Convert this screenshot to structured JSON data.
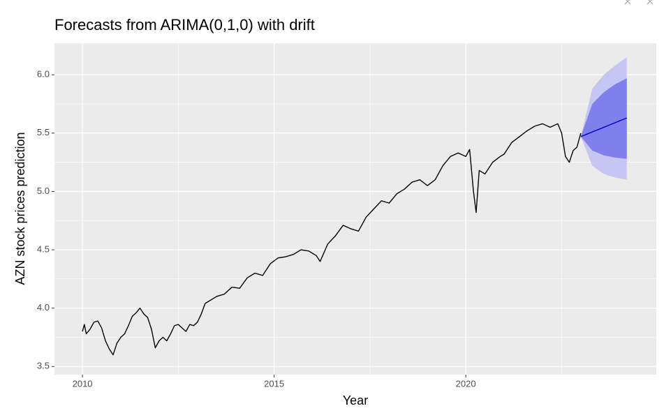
{
  "chart_data": {
    "type": "line",
    "title": "Forecasts from ARIMA(0,1,0) with drift",
    "x_label": "Year",
    "y_label": "AZN stock prices prediction",
    "xlim": [
      2009.27,
      2024.97
    ],
    "ylim": [
      3.43,
      6.27
    ],
    "xticks": [
      2010,
      2015,
      2020
    ],
    "yticks": [
      {
        "value": 3.5,
        "label": "3.5"
      },
      {
        "value": 4,
        "label": "4.0"
      },
      {
        "value": 4.5,
        "label": "4.5"
      },
      {
        "value": 5,
        "label": "5.0"
      },
      {
        "value": 5.5,
        "label": "5.5"
      },
      {
        "value": 6,
        "label": "6.0"
      }
    ],
    "x_minor_ticks": [
      2012.5,
      2017.5,
      2022.5
    ],
    "y_minor_ticks": [
      3.75,
      4.25,
      4.75,
      5.25,
      5.75
    ],
    "grid": true,
    "series": [
      {
        "color": "#000000",
        "x": [
          2010.0,
          2010.05,
          2010.1,
          2010.2,
          2010.3,
          2010.4,
          2010.5,
          2010.6,
          2010.7,
          2010.8,
          2010.9,
          2011.0,
          2011.1,
          2011.2,
          2011.3,
          2011.4,
          2011.5,
          2011.6,
          2011.7,
          2011.8,
          2011.9,
          2012.0,
          2012.1,
          2012.2,
          2012.3,
          2012.4,
          2012.5,
          2012.6,
          2012.7,
          2012.8,
          2012.9,
          2013.0,
          2013.1,
          2013.2,
          2013.3,
          2013.5,
          2013.7,
          2013.9,
          2014.1,
          2014.3,
          2014.5,
          2014.7,
          2014.9,
          2015.1,
          2015.3,
          2015.5,
          2015.7,
          2015.9,
          2016.1,
          2016.2,
          2016.4,
          2016.6,
          2016.8,
          2017.0,
          2017.2,
          2017.4,
          2017.6,
          2017.8,
          2018.0,
          2018.2,
          2018.4,
          2018.6,
          2018.8,
          2019.0,
          2019.2,
          2019.4,
          2019.6,
          2019.8,
          2020.0,
          2020.1,
          2020.2,
          2020.27,
          2020.35,
          2020.5,
          2020.7,
          2020.9,
          2021.0,
          2021.2,
          2021.4,
          2021.6,
          2021.8,
          2022.0,
          2022.2,
          2022.4,
          2022.5,
          2022.6,
          2022.7,
          2022.8,
          2022.9,
          2023.0
        ],
        "values": [
          3.8,
          3.86,
          3.78,
          3.82,
          3.88,
          3.89,
          3.83,
          3.72,
          3.65,
          3.6,
          3.7,
          3.75,
          3.78,
          3.85,
          3.93,
          3.96,
          4.0,
          3.95,
          3.92,
          3.82,
          3.66,
          3.72,
          3.75,
          3.72,
          3.78,
          3.85,
          3.86,
          3.83,
          3.8,
          3.86,
          3.85,
          3.88,
          3.95,
          4.04,
          4.06,
          4.1,
          4.12,
          4.18,
          4.17,
          4.26,
          4.3,
          4.28,
          4.38,
          4.43,
          4.44,
          4.46,
          4.5,
          4.49,
          4.45,
          4.4,
          4.55,
          4.62,
          4.71,
          4.68,
          4.66,
          4.78,
          4.85,
          4.92,
          4.9,
          4.98,
          5.02,
          5.08,
          5.1,
          5.05,
          5.1,
          5.22,
          5.3,
          5.33,
          5.3,
          5.36,
          5.0,
          4.82,
          5.18,
          5.15,
          5.25,
          5.3,
          5.32,
          5.42,
          5.47,
          5.52,
          5.56,
          5.58,
          5.55,
          5.58,
          5.5,
          5.3,
          5.25,
          5.35,
          5.38,
          5.5
        ]
      },
      {
        "color": "#0000cc",
        "x": [
          2023.0,
          2023.3,
          2023.6,
          2023.9,
          2024.2
        ],
        "values": [
          5.47,
          5.51,
          5.55,
          5.59,
          5.63
        ]
      }
    ],
    "intervals": [
      {
        "color": "#c6c6f4",
        "x": [
          2023.0,
          2023.3,
          2023.6,
          2023.9,
          2024.2
        ],
        "upper": [
          5.47,
          5.88,
          6.0,
          6.08,
          6.15
        ],
        "lower": [
          5.47,
          5.22,
          5.15,
          5.12,
          5.1
        ]
      },
      {
        "color": "#7f7fee",
        "x": [
          2023.0,
          2023.3,
          2023.6,
          2023.9,
          2024.2
        ],
        "upper": [
          5.47,
          5.75,
          5.85,
          5.92,
          5.97
        ],
        "lower": [
          5.47,
          5.35,
          5.31,
          5.29,
          5.28
        ]
      }
    ]
  }
}
